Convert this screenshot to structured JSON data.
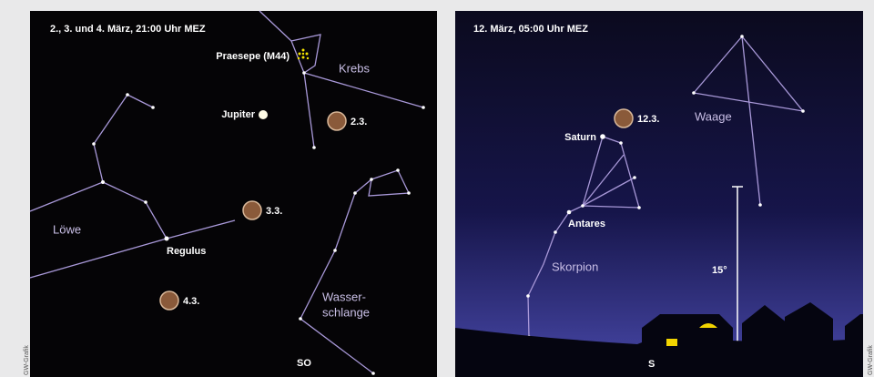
{
  "left_panel": {
    "title": "2., 3. und 4. März, 21:00 Uhr MEZ",
    "labels": {
      "praesepe": "Praesepe (M44)",
      "krebs": "Krebs",
      "jupiter": "Jupiter",
      "moon_1": "2.3.",
      "moon_2": "3.3.",
      "moon_3": "4.3.",
      "loewe": "Löwe",
      "regulus": "Regulus",
      "hydra_1": "Wasser-",
      "hydra_2": "schlange",
      "direction": "SO"
    },
    "credit": "GW-Grafik"
  },
  "right_panel": {
    "title": "12. März, 05:00 Uhr MEZ",
    "labels": {
      "moon": "12.3.",
      "saturn": "Saturn",
      "waage": "Waage",
      "antares": "Antares",
      "skorpion": "Skorpion",
      "scale": "15°",
      "direction": "S"
    },
    "credit": "GW-Grafik"
  }
}
